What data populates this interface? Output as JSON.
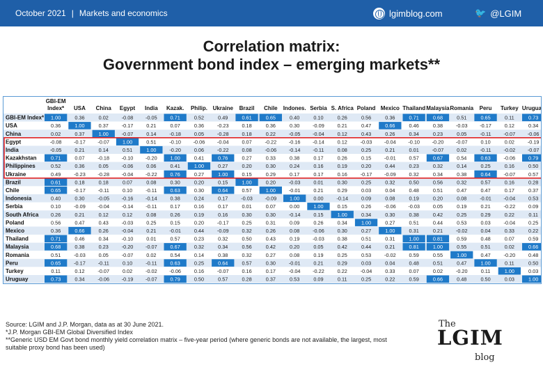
{
  "header": {
    "date": "October 2021",
    "separator": "|",
    "section": "Markets and economics",
    "blog_link": "lgimblog.com",
    "twitter": "@LGIM"
  },
  "title_line1": "Correlation matrix:",
  "title_line2": "Government bond index – emerging markets**",
  "colors": {
    "header_bar": "#1f5fa8",
    "highlight_cell": "#1f7ac9",
    "cell_alt_light": "#dfe9f5",
    "highlight_box": "#e02020",
    "grid_border": "#5b9bd5"
  },
  "chart_data": {
    "type": "heatmap",
    "title": "Correlation matrix: Government bond index – emerging markets**",
    "column_labels": [
      "GBI-EM Index*",
      "USA",
      "China",
      "Egypt",
      "India",
      "Kazak.",
      "Philip.",
      "Ukraine",
      "Brazil",
      "Chile",
      "Indones.",
      "Serbia",
      "S. Africa",
      "Poland",
      "Mexico",
      "Thailand",
      "Malaysia",
      "Romania",
      "Peru",
      "Turkey",
      "Uruguay"
    ],
    "row_labels": [
      "GBI-EM Index*",
      "USA",
      "China",
      "Egypt",
      "India",
      "Kazakhstan",
      "Philippines",
      "Ukraine",
      "Brazil",
      "Chile",
      "Indonesia",
      "Serbia",
      "South Africa",
      "Poland",
      "Mexico",
      "Thailand",
      "Malaysia",
      "Romania",
      "Peru",
      "Turkey",
      "Uruguay"
    ],
    "highlighted_group": [
      "Egypt",
      "India",
      "Kazakhstan",
      "Philippines",
      "Ukraine"
    ],
    "values": [
      [
        "1.00",
        "0.36",
        "0.02",
        "-0.08",
        "-0.05",
        "0.71",
        "0.52",
        "0.49",
        "0.61",
        "0.65",
        "0.40",
        "0.10",
        "0.26",
        "0.56",
        "0.36",
        "0.71",
        "0.68",
        "0.51",
        "0.65",
        "0.11",
        "0.73"
      ],
      [
        "0.36",
        "1.00",
        "0.37",
        "-0.17",
        "0.21",
        "0.07",
        "0.36",
        "-0.23",
        "0.18",
        "0.36",
        "0.30",
        "-0.09",
        "0.21",
        "0.47",
        "0.66",
        "0.46",
        "0.38",
        "-0.03",
        "-0.17",
        "0.12",
        "0.34"
      ],
      [
        "0.02",
        "0.37",
        "1.00",
        "-0.07",
        "0.14",
        "-0.18",
        "0.05",
        "-0.28",
        "0.18",
        "0.22",
        "-0.05",
        "-0.04",
        "0.12",
        "0.43",
        "0.26",
        "0.34",
        "0.23",
        "0.05",
        "-0.11",
        "-0.07",
        "-0.06"
      ],
      [
        "-0.08",
        "-0.17",
        "-0.07",
        "1.00",
        "0.51",
        "-0.10",
        "-0.06",
        "-0.04",
        "0.07",
        "-0.22",
        "-0.16",
        "-0.14",
        "0.12",
        "-0.03",
        "-0.04",
        "-0.10",
        "-0.20",
        "-0.07",
        "0.10",
        "0.02",
        "-0.19"
      ],
      [
        "-0.05",
        "0.21",
        "0.14",
        "0.51",
        "1.00",
        "-0.20",
        "0.06",
        "-0.22",
        "0.08",
        "-0.06",
        "-0.14",
        "-0.11",
        "0.08",
        "0.25",
        "0.21",
        "0.01",
        "-0.07",
        "0.02",
        "-0.11",
        "-0.02",
        "-0.07"
      ],
      [
        "0.71",
        "0.07",
        "-0.18",
        "-0.10",
        "-0.20",
        "1.00",
        "0.41",
        "0.76",
        "0.27",
        "0.33",
        "0.38",
        "0.17",
        "0.26",
        "0.15",
        "-0.01",
        "0.57",
        "0.67",
        "0.54",
        "0.63",
        "-0.06",
        "0.79"
      ],
      [
        "0.52",
        "0.36",
        "0.05",
        "-0.06",
        "0.06",
        "0.41",
        "1.00",
        "0.27",
        "0.20",
        "0.30",
        "0.24",
        "0.16",
        "0.19",
        "0.20",
        "0.44",
        "0.23",
        "0.32",
        "0.14",
        "0.25",
        "0.16",
        "0.50"
      ],
      [
        "0.49",
        "-0.23",
        "-0.28",
        "-0.04",
        "-0.22",
        "0.76",
        "0.27",
        "1.00",
        "0.15",
        "0.29",
        "0.17",
        "0.17",
        "0.16",
        "-0.17",
        "-0.09",
        "0.32",
        "0.34",
        "0.38",
        "0.64",
        "-0.07",
        "0.57"
      ],
      [
        "0.61",
        "0.18",
        "0.18",
        "0.07",
        "0.08",
        "0.30",
        "0.20",
        "0.15",
        "1.00",
        "0.20",
        "-0.03",
        "0.01",
        "0.30",
        "0.25",
        "0.32",
        "0.50",
        "0.56",
        "0.32",
        "0.57",
        "0.16",
        "0.28"
      ],
      [
        "0.65",
        "-0.17",
        "-0.11",
        "0.10",
        "-0.11",
        "0.63",
        "0.30",
        "0.64",
        "0.57",
        "1.00",
        "-0.01",
        "0.21",
        "0.29",
        "0.03",
        "0.04",
        "0.48",
        "0.51",
        "0.47",
        "0.47",
        "0.17",
        "0.37"
      ],
      [
        "0.40",
        "0.30",
        "-0.05",
        "-0.16",
        "-0.14",
        "0.38",
        "0.24",
        "0.17",
        "-0.03",
        "-0.09",
        "1.00",
        "0.00",
        "-0.14",
        "0.09",
        "0.08",
        "0.19",
        "0.20",
        "0.08",
        "-0.01",
        "-0.04",
        "0.53"
      ],
      [
        "0.10",
        "-0.09",
        "-0.04",
        "-0.14",
        "-0.11",
        "0.17",
        "0.16",
        "0.17",
        "0.01",
        "0.07",
        "0.00",
        "1.00",
        "0.15",
        "0.26",
        "-0.06",
        "-0.03",
        "0.05",
        "0.19",
        "0.21",
        "-0.22",
        "0.09"
      ],
      [
        "0.26",
        "0.21",
        "0.12",
        "0.12",
        "0.08",
        "0.26",
        "0.19",
        "0.16",
        "0.30",
        "0.30",
        "-0.14",
        "0.15",
        "1.00",
        "0.34",
        "0.30",
        "0.38",
        "0.42",
        "0.25",
        "0.29",
        "0.22",
        "0.11"
      ],
      [
        "0.56",
        "0.47",
        "0.43",
        "-0.03",
        "0.25",
        "0.15",
        "0.20",
        "-0.17",
        "0.25",
        "0.31",
        "0.09",
        "0.26",
        "0.34",
        "1.00",
        "0.27",
        "0.51",
        "0.44",
        "0.53",
        "0.03",
        "-0.04",
        "0.25"
      ],
      [
        "0.36",
        "0.66",
        "0.26",
        "-0.04",
        "0.21",
        "-0.01",
        "0.44",
        "-0.09",
        "0.32",
        "0.26",
        "0.08",
        "-0.06",
        "0.30",
        "0.27",
        "1.00",
        "0.31",
        "0.21",
        "-0.02",
        "0.04",
        "0.33",
        "0.22"
      ],
      [
        "0.71",
        "0.46",
        "0.34",
        "-0.10",
        "0.01",
        "0.57",
        "0.23",
        "0.32",
        "0.50",
        "0.43",
        "0.19",
        "-0.03",
        "0.38",
        "0.51",
        "0.31",
        "1.00",
        "0.81",
        "0.59",
        "0.48",
        "0.07",
        "0.59"
      ],
      [
        "0.68",
        "0.38",
        "0.23",
        "-0.20",
        "-0.07",
        "0.67",
        "0.32",
        "0.34",
        "0.56",
        "0.42",
        "0.20",
        "0.05",
        "0.42",
        "0.44",
        "0.21",
        "0.81",
        "1.00",
        "0.55",
        "0.51",
        "0.02",
        "0.66"
      ],
      [
        "0.51",
        "-0.03",
        "0.05",
        "-0.07",
        "0.02",
        "0.54",
        "0.14",
        "0.38",
        "0.32",
        "0.27",
        "0.08",
        "0.19",
        "0.25",
        "0.53",
        "-0.02",
        "0.59",
        "0.55",
        "1.00",
        "0.47",
        "-0.20",
        "0.48"
      ],
      [
        "0.65",
        "-0.17",
        "-0.11",
        "0.10",
        "-0.11",
        "0.63",
        "0.25",
        "0.64",
        "0.57",
        "0.30",
        "-0.01",
        "0.21",
        "0.29",
        "0.03",
        "0.04",
        "0.48",
        "0.51",
        "0.47",
        "1.00",
        "0.11",
        "0.50"
      ],
      [
        "0.11",
        "0.12",
        "-0.07",
        "0.02",
        "-0.02",
        "-0.06",
        "0.16",
        "-0.07",
        "0.16",
        "0.17",
        "-0.04",
        "-0.22",
        "0.22",
        "-0.04",
        "0.33",
        "0.07",
        "0.02",
        "-0.20",
        "0.11",
        "1.00",
        "0.03"
      ],
      [
        "0.73",
        "0.34",
        "-0.06",
        "-0.19",
        "-0.07",
        "0.79",
        "0.50",
        "0.57",
        "0.28",
        "0.37",
        "0.53",
        "0.09",
        "0.11",
        "0.25",
        "0.22",
        "0.59",
        "0.66",
        "0.48",
        "0.50",
        "0.03",
        "1.00"
      ]
    ],
    "highlight_rule": "values >= 0.60 shaded dark blue; diagonal = 1.00"
  },
  "footnotes": {
    "line1": "Source: LGIM and J.P. Morgan, data as at 30 June 2021.",
    "line2": "*J.P. Morgan GBI-EM Global Diversified Index",
    "line3": "**Generic USD EM Govt bond monthly yield correlation matrix – five-year period (where generic bonds are not available, the largest, most suitable proxy bond has been used)"
  },
  "logo": {
    "the": "The",
    "lgim": "LGIM",
    "blog": "blog"
  }
}
